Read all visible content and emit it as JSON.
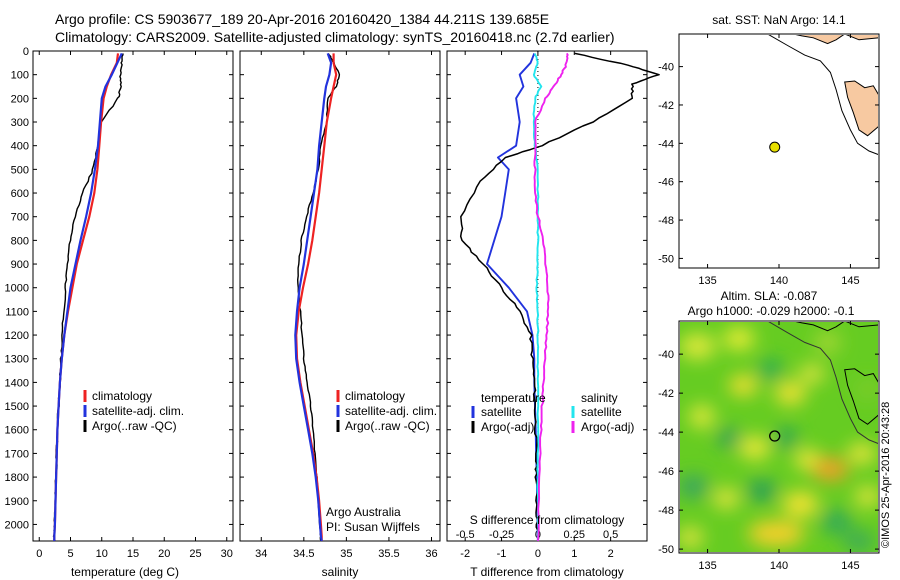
{
  "header": {
    "line1": "Argo profile: CS 5903677_189 20-Apr-2016 20160420_1384 44.211S 139.685E",
    "line2": "Climatology: CARS2009. Satellite-adjusted climatology: synTS_20160418.nc (2.7d earlier)"
  },
  "credit": "©IMOS 25-Apr-2016 20:43:28",
  "colors": {
    "climatology": "#ee2222",
    "satellite": "#2233dd",
    "argo": "#000000",
    "sat_salinity": "#22e5ee",
    "argo_salinity": "#ee22ee",
    "land": "#f7c9a1",
    "marker": "#e8e000"
  },
  "chart_data": [
    {
      "id": "temperature",
      "type": "line",
      "xlabel": "temperature (deg C)",
      "ylabel": "",
      "xlim": [
        -1,
        31
      ],
      "ylim": [
        2070,
        0
      ],
      "xticks": [
        0,
        5,
        10,
        15,
        20,
        25,
        30
      ],
      "yticks": [
        0,
        100,
        200,
        300,
        400,
        500,
        600,
        700,
        800,
        900,
        1000,
        1100,
        1200,
        1300,
        1400,
        1500,
        1600,
        1700,
        1800,
        1900,
        2000
      ],
      "legend": [
        "climatology",
        "satellite-adj. clim.",
        "Argo(..raw -QC)"
      ],
      "series": [
        {
          "name": "climatology",
          "color_key": "climatology",
          "x": [
            12.6,
            12.4,
            11.5,
            10.8,
            10.3,
            9.9,
            9.6,
            9.3,
            8.8,
            8.0,
            7.0,
            6.0,
            5.3,
            4.6,
            4.0,
            3.6,
            3.3,
            3.1,
            2.9,
            2.8,
            2.7,
            2.6,
            2.5,
            2.4,
            2.4,
            2.4
          ],
          "y": [
            10,
            50,
            100,
            150,
            200,
            300,
            400,
            500,
            600,
            700,
            800,
            900,
            1000,
            1100,
            1200,
            1300,
            1400,
            1500,
            1600,
            1700,
            1800,
            1900,
            2000,
            2050,
            2060,
            2070
          ]
        },
        {
          "name": "satellite-adj. clim.",
          "color_key": "satellite",
          "x": [
            13.2,
            12.5,
            11.6,
            10.6,
            10.0,
            9.7,
            9.4,
            8.9,
            8.3,
            7.5,
            6.6,
            5.8,
            5.0,
            4.5,
            4.0,
            3.6,
            3.3,
            3.1,
            2.9,
            2.8,
            2.7,
            2.6,
            2.5,
            2.4,
            2.4,
            2.4
          ],
          "y": [
            10,
            50,
            100,
            150,
            200,
            300,
            400,
            500,
            600,
            700,
            800,
            900,
            1000,
            1100,
            1200,
            1300,
            1400,
            1500,
            1600,
            1700,
            1800,
            1900,
            2000,
            2050,
            2060,
            2070
          ]
        },
        {
          "name": "Argo(..raw -QC)",
          "color_key": "argo",
          "x": [
            13.4,
            13.2,
            13.0,
            13.1,
            12.6,
            9.9,
            9.4,
            8.6,
            6.9,
            5.8,
            4.9,
            4.5,
            4.2,
            3.9,
            3.7,
            3.5,
            3.3,
            3.1,
            2.9,
            2.8,
            2.7,
            2.6,
            2.5,
            2.4,
            2.4
          ],
          "y": [
            10,
            50,
            100,
            150,
            200,
            300,
            400,
            500,
            600,
            700,
            800,
            900,
            1000,
            1100,
            1200,
            1300,
            1400,
            1500,
            1600,
            1700,
            1800,
            1900,
            2000,
            2050,
            2070
          ]
        }
      ]
    },
    {
      "id": "salinity",
      "type": "line",
      "xlabel": "salinity",
      "xlim": [
        33.75,
        36.1
      ],
      "ylim": [
        2070,
        0
      ],
      "xticks": [
        34,
        34.5,
        35,
        35.5,
        36
      ],
      "legend": [
        "climatology",
        "satellite-adj. clim.",
        "Argo(..raw -QC)"
      ],
      "annotations": [
        "Argo Australia",
        "PI: Susan Wijffels"
      ],
      "series": [
        {
          "name": "climatology",
          "color_key": "climatology",
          "x": [
            34.85,
            34.85,
            34.88,
            34.85,
            34.82,
            34.77,
            34.74,
            34.71,
            34.68,
            34.64,
            34.6,
            34.55,
            34.49,
            34.44,
            34.41,
            34.42,
            34.46,
            34.51,
            34.56,
            34.61,
            34.65,
            34.68,
            34.7,
            34.71,
            34.71,
            34.71
          ],
          "y": [
            10,
            50,
            100,
            150,
            200,
            300,
            400,
            500,
            600,
            700,
            800,
            900,
            1000,
            1100,
            1200,
            1300,
            1400,
            1500,
            1600,
            1700,
            1800,
            1900,
            2000,
            2050,
            2060,
            2070
          ]
        },
        {
          "name": "satellite-adj. clim.",
          "color_key": "satellite",
          "x": [
            34.78,
            34.82,
            34.8,
            34.76,
            34.74,
            34.71,
            34.68,
            34.66,
            34.62,
            34.58,
            34.54,
            34.5,
            34.45,
            34.42,
            34.4,
            34.41,
            34.45,
            34.5,
            34.55,
            34.6,
            34.64,
            34.67,
            34.69,
            34.7,
            34.71
          ],
          "y": [
            10,
            50,
            100,
            150,
            200,
            300,
            400,
            500,
            600,
            700,
            800,
            900,
            1000,
            1100,
            1200,
            1300,
            1400,
            1500,
            1600,
            1700,
            1800,
            1900,
            2000,
            2050,
            2070
          ]
        },
        {
          "name": "Argo(..raw -QC)",
          "color_key": "argo",
          "x": [
            34.79,
            34.85,
            34.92,
            34.88,
            34.78,
            34.77,
            34.7,
            34.67,
            34.61,
            34.53,
            34.47,
            34.44,
            34.43,
            34.46,
            34.48,
            34.5,
            34.54,
            34.58,
            34.61,
            34.63,
            34.65,
            34.67,
            34.69,
            34.7,
            34.7
          ],
          "y": [
            10,
            50,
            100,
            150,
            200,
            300,
            400,
            500,
            600,
            700,
            800,
            900,
            1000,
            1100,
            1200,
            1300,
            1400,
            1500,
            1600,
            1700,
            1800,
            1900,
            2000,
            2050,
            2070
          ]
        }
      ]
    },
    {
      "id": "difference",
      "type": "line",
      "xlabel": "T difference from climatology",
      "xlabel2": "S difference from climatology",
      "xlim": [
        -2.5,
        3.0
      ],
      "xlim2": [
        -0.625,
        0.75
      ],
      "ylim": [
        2070,
        0
      ],
      "xticks": [
        -2,
        -1,
        0,
        1,
        2
      ],
      "xticks2": [
        -0.5,
        -0.25,
        0,
        0.25,
        0.5
      ],
      "xtick_labels": [
        "-2",
        "-1",
        "0",
        "1",
        "2"
      ],
      "xtick_labels2": [
        "-0.5",
        "-0.25",
        "0",
        "0.25",
        "0.5"
      ],
      "legend_headers": [
        "temperature",
        "salinity"
      ],
      "legend": [
        "satellite",
        "Argo(-adj)",
        "satellite",
        "Argo(-adj)"
      ],
      "series": [
        {
          "name": "satellite",
          "group": "temperature",
          "color_key": "satellite",
          "x": [
            -0.1,
            -0.2,
            -0.5,
            -0.4,
            -0.6,
            -0.5,
            -0.6,
            -1.1,
            -0.8,
            -0.9,
            -1.0,
            -1.4,
            -0.8,
            -0.3,
            -0.15,
            -0.1,
            -0.1,
            -0.08,
            -0.06,
            -0.05,
            -0.03,
            -0.02,
            -0.01,
            0
          ],
          "y": [
            10,
            50,
            100,
            150,
            200,
            300,
            400,
            450,
            500,
            600,
            700,
            900,
            1000,
            1100,
            1200,
            1300,
            1400,
            1500,
            1600,
            1700,
            1800,
            1900,
            2000,
            2070
          ]
        },
        {
          "name": "Argo(-adj)",
          "group": "temperature",
          "color_key": "argo",
          "x": [
            1.0,
            2.5,
            3.3,
            2.6,
            2.6,
            1.5,
            0.1,
            -0.9,
            -1.6,
            -2.1,
            -2.1,
            -1.5,
            -1.0,
            -0.5,
            -0.2,
            -0.15,
            -0.1,
            -0.08,
            -0.06,
            -0.05,
            -0.04,
            -0.03,
            -0.02,
            0
          ],
          "y": [
            10,
            60,
            100,
            140,
            200,
            300,
            400,
            450,
            550,
            700,
            800,
            900,
            1000,
            1100,
            1200,
            1300,
            1400,
            1500,
            1600,
            1700,
            1800,
            1900,
            2000,
            2070
          ]
        },
        {
          "name": "satellite",
          "group": "salinity",
          "color_key": "sat_salinity",
          "x": [
            -0.02,
            0.0,
            -0.03,
            0.02,
            -0.02,
            -0.03,
            -0.02,
            0.0,
            0.0,
            0.0,
            0.0,
            0.0,
            -0.01,
            0.0,
            0.0,
            0.0,
            0.0,
            0.0,
            0.0,
            0.0,
            0.0
          ],
          "y": [
            10,
            50,
            100,
            150,
            200,
            300,
            400,
            500,
            600,
            700,
            800,
            900,
            1000,
            1100,
            1200,
            1300,
            1400,
            1500,
            1700,
            1900,
            2070
          ]
        },
        {
          "name": "Argo(-adj)",
          "group": "salinity",
          "color_key": "argo_salinity",
          "x": [
            0.2,
            0.2,
            0.16,
            0.11,
            0.05,
            -0.02,
            -0.02,
            -0.02,
            -0.02,
            0.0,
            0.04,
            0.05,
            0.07,
            0.07,
            0.06,
            0.05,
            0.04,
            0.03,
            0.02,
            0.01,
            0.0
          ],
          "y": [
            10,
            50,
            100,
            150,
            200,
            300,
            400,
            500,
            600,
            700,
            800,
            900,
            1000,
            1100,
            1200,
            1300,
            1400,
            1500,
            1600,
            1800,
            2070
          ]
        }
      ]
    },
    {
      "id": "sst-map",
      "type": "scatter",
      "title": "sat. SST: NaN Argo: 14.1",
      "xlim": [
        133,
        147
      ],
      "ylim": [
        -50.5,
        -38.3
      ],
      "xticks": [
        135,
        140,
        145
      ],
      "yticks": [
        -40,
        -42,
        -44,
        -46,
        -48,
        -50
      ],
      "points": [
        {
          "x": 139.7,
          "y": -44.2
        }
      ]
    },
    {
      "id": "sla-map",
      "type": "heatmap",
      "title": "Altim. SLA: -0.087",
      "subtitle": "Argo h1000: -0.029 h2000: -0.1",
      "xlim": [
        133,
        147
      ],
      "ylim": [
        -50.2,
        -38.3
      ],
      "xticks": [
        135,
        140,
        145
      ],
      "yticks": [
        -40,
        -42,
        -44,
        -46,
        -48,
        -50
      ],
      "points": [
        {
          "x": 139.7,
          "y": -44.2
        }
      ]
    }
  ]
}
